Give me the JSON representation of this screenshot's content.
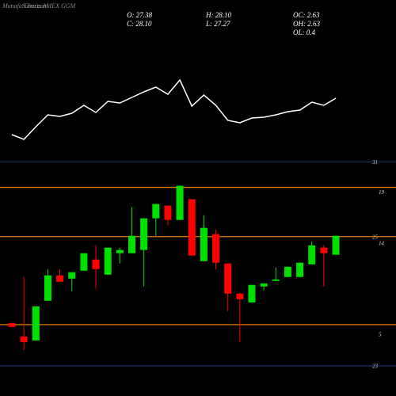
{
  "header": {
    "watermark": "MunafaSutra.com",
    "title": "Charts AMEX GGM",
    "stats": [
      "O: 27.38",
      "H: 28.10",
      "OC: 2.63",
      "C: 28.10",
      "L: 27.27",
      "OH: 2.63",
      "OL: 0.4"
    ]
  },
  "chart_data": {
    "type": "candlestick",
    "up_color": "#00e000",
    "down_color": "#ff0000",
    "ylim": [
      1.34,
      22.4
    ],
    "yticks": [
      19,
      14,
      5
    ],
    "open": [
      6.19,
      4.86,
      4.47,
      8.38,
      10.88,
      10.56,
      11.34,
      12.44,
      10.95,
      13.06,
      13.06,
      13.38,
      16.5,
      17.75,
      16.34,
      18.38,
      12.28,
      14.94,
      12.05,
      9.08,
      8.22,
      9.78,
      10.33,
      10.72,
      10.72,
      11.97,
      13.61,
      12.91
    ],
    "high": [
      6.19,
      10.72,
      7.83,
      11.5,
      11.5,
      11.19,
      13.06,
      13.84,
      13.61,
      13.61,
      17.59,
      16.5,
      17.91,
      17.75,
      19.7,
      18.38,
      16.81,
      15.41,
      12.05,
      9.16,
      9.94,
      10.09,
      11.66,
      11.73,
      12.13,
      14.23,
      13.84,
      14.78
    ],
    "low": [
      5.8,
      3.53,
      4.47,
      8.38,
      10.25,
      9.31,
      11.34,
      9.55,
      10.95,
      12.05,
      13.06,
      9.78,
      14.78,
      15.8,
      16.34,
      12.83,
      12.28,
      11.5,
      7.36,
      4.31,
      8.22,
      9.39,
      10.33,
      10.72,
      10.72,
      11.97,
      9.78,
      12.91
    ],
    "close": [
      5.8,
      4.31,
      7.83,
      10.88,
      10.25,
      11.19,
      13.06,
      11.5,
      13.61,
      13.38,
      14.78,
      16.5,
      17.91,
      16.34,
      19.7,
      12.83,
      15.56,
      12.13,
      9.08,
      8.53,
      9.94,
      10.09,
      10.48,
      11.73,
      12.13,
      13.84,
      13.06,
      14.78
    ],
    "hlines": [
      {
        "value": 22.05,
        "label": "31",
        "color": "#1e2a55"
      },
      {
        "value": 19.55,
        "color": "#e07b00"
      },
      {
        "value": 14.7,
        "label": "25",
        "color": "#e07b00"
      },
      {
        "value": 6.03,
        "color": "#e07b00"
      },
      {
        "value": 1.97,
        "label": "23",
        "color": "#1e2a55"
      }
    ],
    "line": {
      "color": "#ffffff",
      "ylim": [
        0,
        100
      ],
      "values": [
        30,
        24,
        40,
        55,
        53,
        57,
        67,
        58,
        72,
        70,
        77,
        84,
        90,
        81,
        99,
        66,
        80,
        67,
        48,
        45,
        51,
        52,
        55,
        59,
        61,
        71,
        67,
        76
      ]
    }
  }
}
